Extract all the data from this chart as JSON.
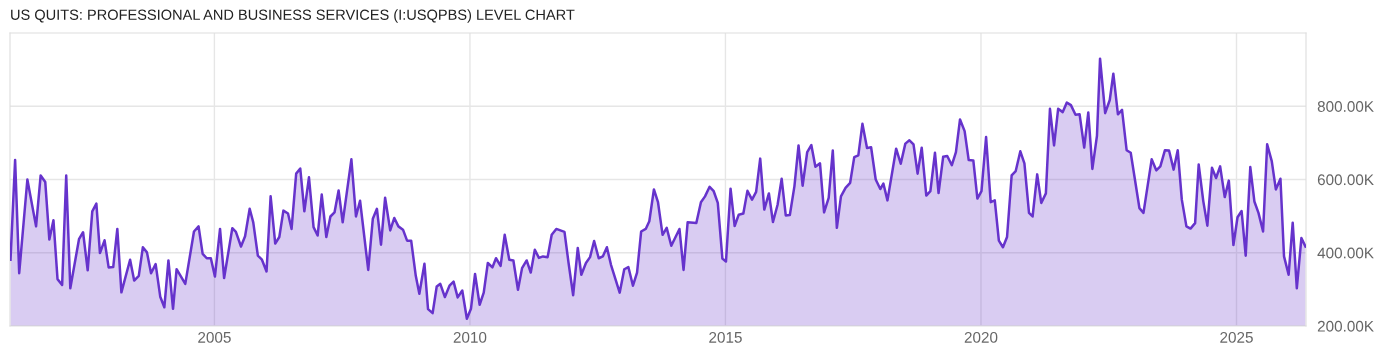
{
  "chart_data": {
    "type": "area",
    "title": "US QUITS: PROFESSIONAL AND BUSINESS SERVICES (I:USQPBS) LEVEL CHART",
    "xlim": [
      2001.0,
      2026.36
    ],
    "xticks": [
      2005,
      2010,
      2015,
      2020,
      2025
    ],
    "ylim": [
      200000,
      1000000
    ],
    "yticks": [
      {
        "value": 200000,
        "label": "200.00K"
      },
      {
        "value": 400000,
        "label": "400.00K"
      },
      {
        "value": 600000,
        "label": "600.00K"
      },
      {
        "value": 800000,
        "label": "800.00K"
      }
    ],
    "grid": true,
    "legend": false,
    "series": [
      {
        "color": "#6633cc",
        "x": [
          2001.01,
          2001.1,
          2001.18,
          2001.34,
          2001.51,
          2001.6,
          2001.69,
          2001.77,
          2001.85,
          2001.93,
          2002.02,
          2002.1,
          2002.18,
          2002.35,
          2002.43,
          2002.52,
          2002.61,
          2002.69,
          2002.76,
          2002.85,
          2002.93,
          2003.02,
          2003.1,
          2003.18,
          2003.35,
          2003.43,
          2003.52,
          2003.6,
          2003.68,
          2003.76,
          2003.85,
          2003.94,
          2004.02,
          2004.1,
          2004.19,
          2004.26,
          2004.43,
          2004.6,
          2004.69,
          2004.77,
          2004.85,
          2004.93,
          2005.01,
          2005.11,
          2005.19,
          2005.35,
          2005.42,
          2005.52,
          2005.6,
          2005.69,
          2005.76,
          2005.85,
          2005.93,
          2006.02,
          2006.1,
          2006.19,
          2006.27,
          2006.35,
          2006.44,
          2006.51,
          2006.6,
          2006.68,
          2006.76,
          2006.85,
          2006.94,
          2007.02,
          2007.1,
          2007.19,
          2007.27,
          2007.35,
          2007.43,
          2007.51,
          2007.68,
          2007.77,
          2007.85,
          2008.01,
          2008.1,
          2008.18,
          2008.26,
          2008.34,
          2008.44,
          2008.52,
          2008.6,
          2008.69,
          2008.77,
          2008.85,
          2008.94,
          2009.01,
          2009.11,
          2009.18,
          2009.27,
          2009.35,
          2009.42,
          2009.51,
          2009.6,
          2009.68,
          2009.76,
          2009.85,
          2009.94,
          2010.02,
          2010.1,
          2010.19,
          2010.27,
          2010.35,
          2010.44,
          2010.51,
          2010.6,
          2010.68,
          2010.77,
          2010.85,
          2010.94,
          2011.02,
          2011.11,
          2011.19,
          2011.27,
          2011.35,
          2011.43,
          2011.52,
          2011.6,
          2011.69,
          2011.85,
          2011.93,
          2012.02,
          2012.11,
          2012.18,
          2012.27,
          2012.35,
          2012.43,
          2012.52,
          2012.6,
          2012.68,
          2012.76,
          2012.93,
          2013.02,
          2013.1,
          2013.19,
          2013.27,
          2013.35,
          2013.44,
          2013.51,
          2013.6,
          2013.68,
          2013.77,
          2013.85,
          2013.94,
          2014.1,
          2014.18,
          2014.26,
          2014.43,
          2014.52,
          2014.6,
          2014.69,
          2014.77,
          2014.85,
          2014.94,
          2015.01,
          2015.1,
          2015.18,
          2015.26,
          2015.35,
          2015.43,
          2015.52,
          2015.6,
          2015.68,
          2015.76,
          2015.85,
          2015.93,
          2016.02,
          2016.1,
          2016.18,
          2016.26,
          2016.35,
          2016.43,
          2016.51,
          2016.6,
          2016.68,
          2016.76,
          2016.85,
          2016.93,
          2017.02,
          2017.1,
          2017.18,
          2017.26,
          2017.35,
          2017.44,
          2017.52,
          2017.6,
          2017.68,
          2017.77,
          2017.85,
          2017.94,
          2018.03,
          2018.09,
          2018.17,
          2018.34,
          2018.43,
          2018.52,
          2018.6,
          2018.68,
          2018.76,
          2018.84,
          2018.93,
          2019.01,
          2019.1,
          2019.17,
          2019.26,
          2019.34,
          2019.43,
          2019.51,
          2019.59,
          2019.68,
          2019.76,
          2019.85,
          2019.93,
          2020.01,
          2020.1,
          2020.19,
          2020.27,
          2020.35,
          2020.43,
          2020.51,
          2020.6,
          2020.68,
          2020.77,
          2020.85,
          2020.94,
          2021.01,
          2021.1,
          2021.18,
          2021.27,
          2021.35,
          2021.43,
          2021.51,
          2021.6,
          2021.68,
          2021.76,
          2021.85,
          2021.93,
          2022.02,
          2022.1,
          2022.18,
          2022.27,
          2022.33,
          2022.43,
          2022.52,
          2022.59,
          2022.68,
          2022.76,
          2022.85,
          2022.93,
          2023.1,
          2023.18,
          2023.34,
          2023.43,
          2023.51,
          2023.6,
          2023.68,
          2023.77,
          2023.85,
          2023.93,
          2024.02,
          2024.1,
          2024.19,
          2024.26,
          2024.35,
          2024.43,
          2024.52,
          2024.6,
          2024.68,
          2024.77,
          2024.85,
          2024.94,
          2025.02,
          2025.1,
          2025.18,
          2025.27,
          2025.35,
          2025.43,
          2025.52,
          2025.6,
          2025.69,
          2025.77,
          2025.86,
          2025.93,
          2026.02,
          2026.1,
          2026.18,
          2026.27,
          2026.35
        ],
        "values": [
          381000,
          653000,
          344000,
          600000,
          472000,
          611000,
          593000,
          436000,
          489000,
          328000,
          312000,
          611000,
          303000,
          437000,
          456000,
          352000,
          513000,
          534000,
          399000,
          434000,
          360000,
          361000,
          465000,
          292000,
          381000,
          324000,
          337000,
          415000,
          401000,
          344000,
          369000,
          280000,
          251000,
          379000,
          247000,
          355000,
          315000,
          458000,
          472000,
          397000,
          385000,
          385000,
          335000,
          465000,
          331000,
          467000,
          457000,
          417000,
          445000,
          520000,
          483000,
          392000,
          381000,
          349000,
          554000,
          425000,
          443000,
          515000,
          507000,
          465000,
          616000,
          630000,
          513000,
          606000,
          470000,
          447000,
          559000,
          443000,
          499000,
          510000,
          570000,
          483000,
          655000,
          499000,
          542000,
          353000,
          493000,
          520000,
          422000,
          550000,
          461000,
          495000,
          472000,
          463000,
          433000,
          433000,
          337000,
          288000,
          370000,
          246000,
          235000,
          308000,
          315000,
          279000,
          310000,
          321000,
          278000,
          297000,
          220000,
          247000,
          342000,
          258000,
          291000,
          372000,
          360000,
          385000,
          364000,
          449000,
          381000,
          379000,
          299000,
          358000,
          379000,
          346000,
          408000,
          386000,
          390000,
          388000,
          449000,
          465000,
          457000,
          372000,
          284000,
          413000,
          340000,
          372000,
          388000,
          432000,
          385000,
          390000,
          415000,
          367000,
          291000,
          355000,
          361000,
          310000,
          346000,
          458000,
          465000,
          486000,
          573000,
          538000,
          449000,
          468000,
          419000,
          465000,
          353000,
          483000,
          481000,
          538000,
          554000,
          580000,
          568000,
          536000,
          384000,
          376000,
          575000,
          473000,
          504000,
          507000,
          569000,
          545000,
          566000,
          657000,
          518000,
          562000,
          484000,
          531000,
          602000,
          502000,
          503000,
          582000,
          693000,
          583000,
          675000,
          694000,
          635000,
          644000,
          510000,
          550000,
          679000,
          468000,
          554000,
          577000,
          591000,
          661000,
          666000,
          752000,
          686000,
          688000,
          600000,
          574000,
          589000,
          543000,
          684000,
          643000,
          698000,
          707000,
          696000,
          616000,
          687000,
          556000,
          568000,
          673000,
          563000,
          662000,
          664000,
          639000,
          675000,
          764000,
          732000,
          653000,
          652000,
          548000,
          568000,
          716000,
          538000,
          543000,
          433000,
          415000,
          443000,
          611000,
          623000,
          677000,
          644000,
          509000,
          499000,
          614000,
          536000,
          562000,
          793000,
          693000,
          793000,
          784000,
          810000,
          803000,
          777000,
          778000,
          687000,
          783000,
          629000,
          720000,
          930000,
          781000,
          817000,
          889000,
          778000,
          790000,
          680000,
          673000,
          522000,
          509000,
          655000,
          625000,
          636000,
          680000,
          679000,
          627000,
          680000,
          545000,
          472000,
          466000,
          481000,
          641000,
          541000,
          474000,
          632000,
          604000,
          636000,
          552000,
          597000,
          421000,
          497000,
          514000,
          392000,
          634000,
          540000,
          509000,
          458000,
          696000,
          650000,
          573000,
          602000,
          390000,
          340000,
          482000,
          303000,
          440000,
          417000
        ]
      }
    ]
  }
}
